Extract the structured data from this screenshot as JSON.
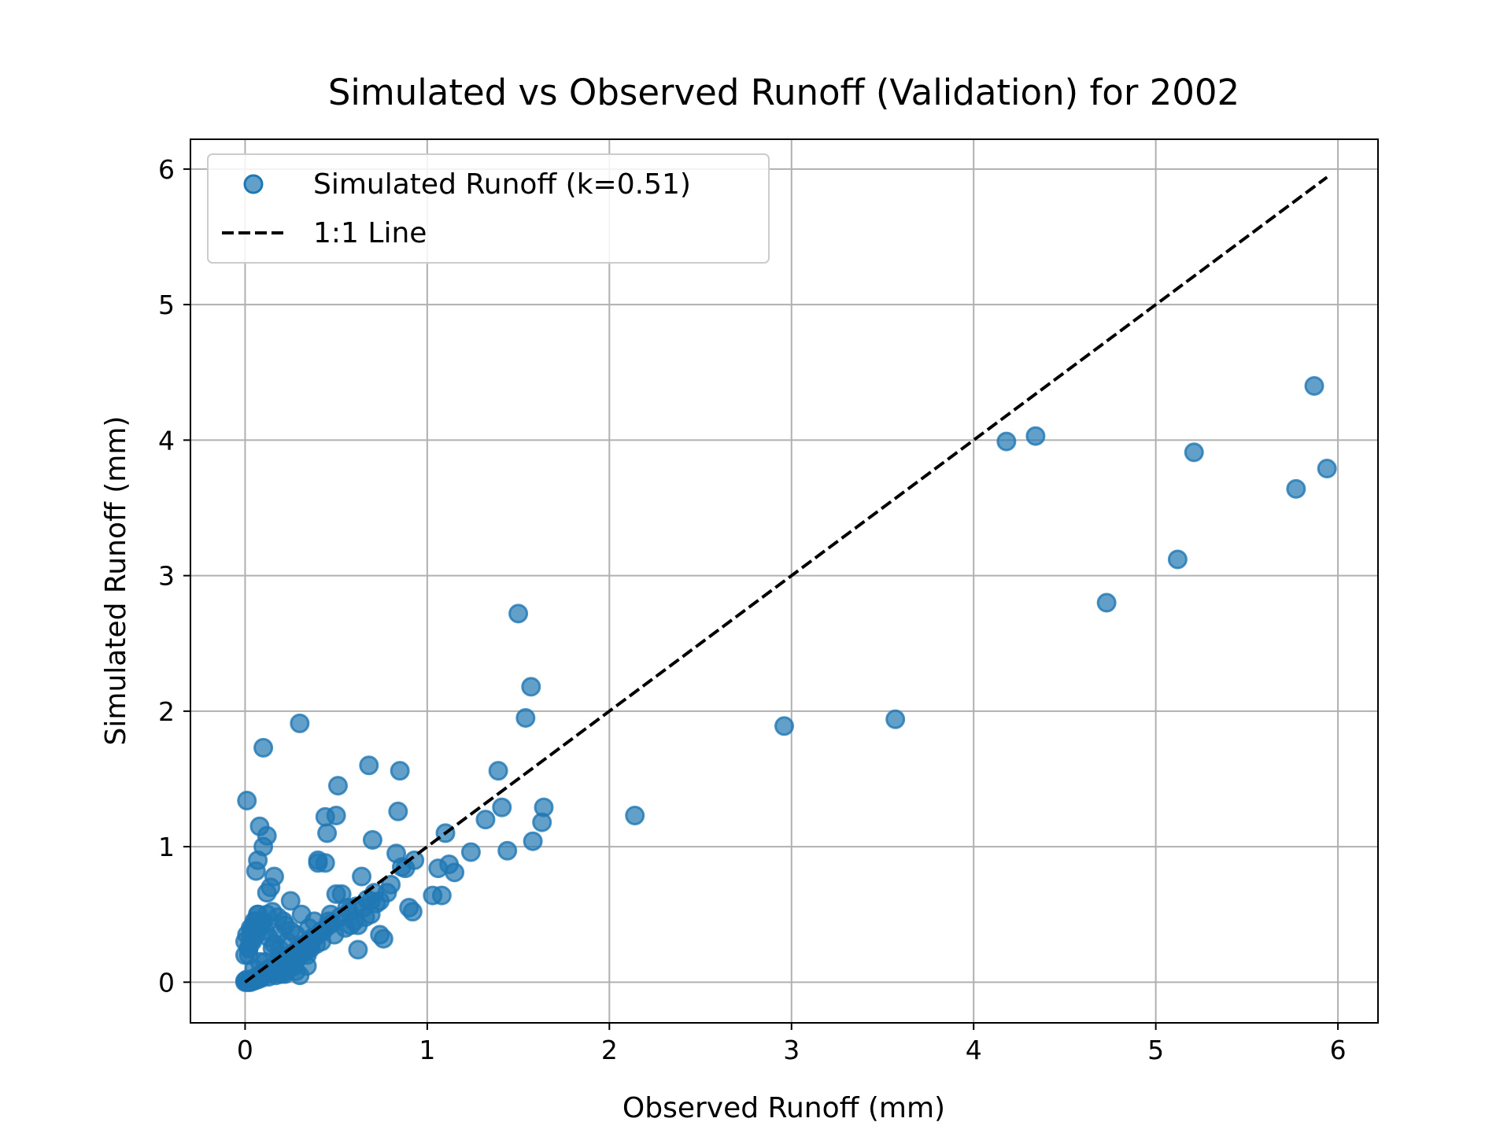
{
  "chart_data": {
    "type": "scatter",
    "title": "Simulated vs Observed Runoff (Validation) for 2002",
    "xlabel": "Observed Runoff (mm)",
    "ylabel": "Simulated Runoff (mm)",
    "xlim": [
      -0.3,
      6.22
    ],
    "ylim": [
      -0.3,
      6.22
    ],
    "xticks": [
      0,
      1,
      2,
      3,
      4,
      5,
      6
    ],
    "yticks": [
      0,
      1,
      2,
      3,
      4,
      5,
      6
    ],
    "xtick_labels": [
      "0",
      "1",
      "2",
      "3",
      "4",
      "5",
      "6"
    ],
    "ytick_labels": [
      "0",
      "1",
      "2",
      "3",
      "4",
      "5",
      "6"
    ],
    "grid": true,
    "legend_position": "top-left",
    "colors": {
      "points": "#1f77b4",
      "line": "#000000",
      "grid": "#b0b0b0"
    },
    "series": [
      {
        "name": "Simulated Runoff (k=0.51)",
        "kind": "scatter",
        "x": [
          5.87,
          5.94,
          5.77,
          5.21,
          5.12,
          4.73,
          4.34,
          4.18,
          3.57,
          2.96,
          2.14,
          1.5,
          1.57,
          1.54,
          1.39,
          1.41,
          1.32,
          1.44,
          1.58,
          1.64,
          1.63,
          1.24,
          1.1,
          1.12,
          1.15,
          1.06,
          1.08,
          1.03,
          0.93,
          0.88,
          0.85,
          0.83,
          0.84,
          0.86,
          0.9,
          0.92,
          0.8,
          0.78,
          0.76,
          0.74,
          0.72,
          0.7,
          0.69,
          0.68,
          0.66,
          0.65,
          0.64,
          0.62,
          0.6,
          0.58,
          0.55,
          0.53,
          0.51,
          0.5,
          0.49,
          0.47,
          0.45,
          0.44,
          0.42,
          0.4,
          0.39,
          0.38,
          0.36,
          0.35,
          0.34,
          0.33,
          0.31,
          0.3,
          0.29,
          0.28,
          0.27,
          0.26,
          0.25,
          0.24,
          0.23,
          0.22,
          0.21,
          0.2,
          0.19,
          0.18,
          0.17,
          0.16,
          0.15,
          0.14,
          0.13,
          0.12,
          0.11,
          0.1,
          0.09,
          0.08,
          0.07,
          0.06,
          0.05,
          0.04,
          0.03,
          0.02,
          0.01,
          0.0,
          0.3,
          0.1,
          0.01,
          0.07,
          0.12,
          0.5,
          0.69,
          0.46,
          0.44,
          0.4,
          0.74,
          0.62,
          0.56,
          0.34,
          0.28,
          0.22,
          0.06,
          0.03,
          0.02,
          0.08,
          0.14,
          0.18,
          0.05,
          0.1,
          0.15,
          0.2,
          0.25,
          0.32,
          0.37,
          0.42,
          0.48,
          0.52,
          0.57,
          0.61,
          0.67,
          0.71,
          0.02,
          0.04,
          0.06,
          0.09,
          0.11,
          0.13,
          0.16,
          0.19,
          0.21,
          0.24,
          0.27,
          0.29,
          0.31,
          0.35,
          0.38,
          0.41,
          0.43,
          0.46,
          0.0,
          0.01,
          0.03,
          0.05,
          0.07,
          0.09,
          0.12,
          0.14,
          0.17,
          0.2,
          0.23,
          0.26,
          0.3,
          0.33,
          0.36,
          0.0,
          0.02,
          0.04,
          0.06,
          0.08,
          0.1,
          0.12,
          0.15,
          0.18,
          0.22,
          0.25,
          0.0,
          0.01,
          0.03,
          0.05,
          0.07,
          0.09,
          0.11,
          0.13,
          0.16,
          0.19
        ],
        "y": [
          4.4,
          3.79,
          3.64,
          3.91,
          3.12,
          2.8,
          4.03,
          3.99,
          1.94,
          1.89,
          1.23,
          2.72,
          2.18,
          1.95,
          1.56,
          1.29,
          1.2,
          0.97,
          1.04,
          1.29,
          1.18,
          0.96,
          1.1,
          0.87,
          0.81,
          0.84,
          0.64,
          0.64,
          0.9,
          0.84,
          1.56,
          0.95,
          1.26,
          0.85,
          0.55,
          0.52,
          0.72,
          0.66,
          0.32,
          0.6,
          0.58,
          1.05,
          0.5,
          1.6,
          0.48,
          0.55,
          0.78,
          0.24,
          0.45,
          0.42,
          0.4,
          0.65,
          1.45,
          1.23,
          0.35,
          0.5,
          1.1,
          0.88,
          0.3,
          0.88,
          0.28,
          0.45,
          0.25,
          0.4,
          0.2,
          0.22,
          0.5,
          1.91,
          0.18,
          0.35,
          0.12,
          0.16,
          0.6,
          0.1,
          0.3,
          0.08,
          0.45,
          0.06,
          0.2,
          0.35,
          0.05,
          0.78,
          0.25,
          0.7,
          0.04,
          1.08,
          0.15,
          1.73,
          0.03,
          1.15,
          0.5,
          0.82,
          0.1,
          0.4,
          0.3,
          0.2,
          0.02,
          0.01,
          0.05,
          1.0,
          1.34,
          0.9,
          0.66,
          0.65,
          0.6,
          0.45,
          1.22,
          0.9,
          0.35,
          0.42,
          0.55,
          0.12,
          0.08,
          0.06,
          0.45,
          0.35,
          0.25,
          0.15,
          0.1,
          0.09,
          0.02,
          0.05,
          0.1,
          0.15,
          0.2,
          0.28,
          0.33,
          0.38,
          0.44,
          0.48,
          0.52,
          0.56,
          0.61,
          0.66,
          0.0,
          0.02,
          0.04,
          0.06,
          0.08,
          0.1,
          0.12,
          0.14,
          0.16,
          0.19,
          0.22,
          0.24,
          0.26,
          0.3,
          0.33,
          0.36,
          0.38,
          0.42,
          0.0,
          0.0,
          0.0,
          0.01,
          0.02,
          0.04,
          0.06,
          0.07,
          0.09,
          0.11,
          0.14,
          0.17,
          0.21,
          0.25,
          0.28,
          0.2,
          0.25,
          0.3,
          0.35,
          0.4,
          0.45,
          0.5,
          0.52,
          0.48,
          0.42,
          0.38,
          0.3,
          0.35,
          0.4,
          0.45,
          0.5,
          0.42,
          0.38,
          0.33,
          0.28,
          0.24
        ]
      },
      {
        "name": "1:1 Line",
        "kind": "line",
        "style": "dashed",
        "x": [
          0,
          5.94
        ],
        "y": [
          0,
          5.94
        ]
      }
    ]
  }
}
